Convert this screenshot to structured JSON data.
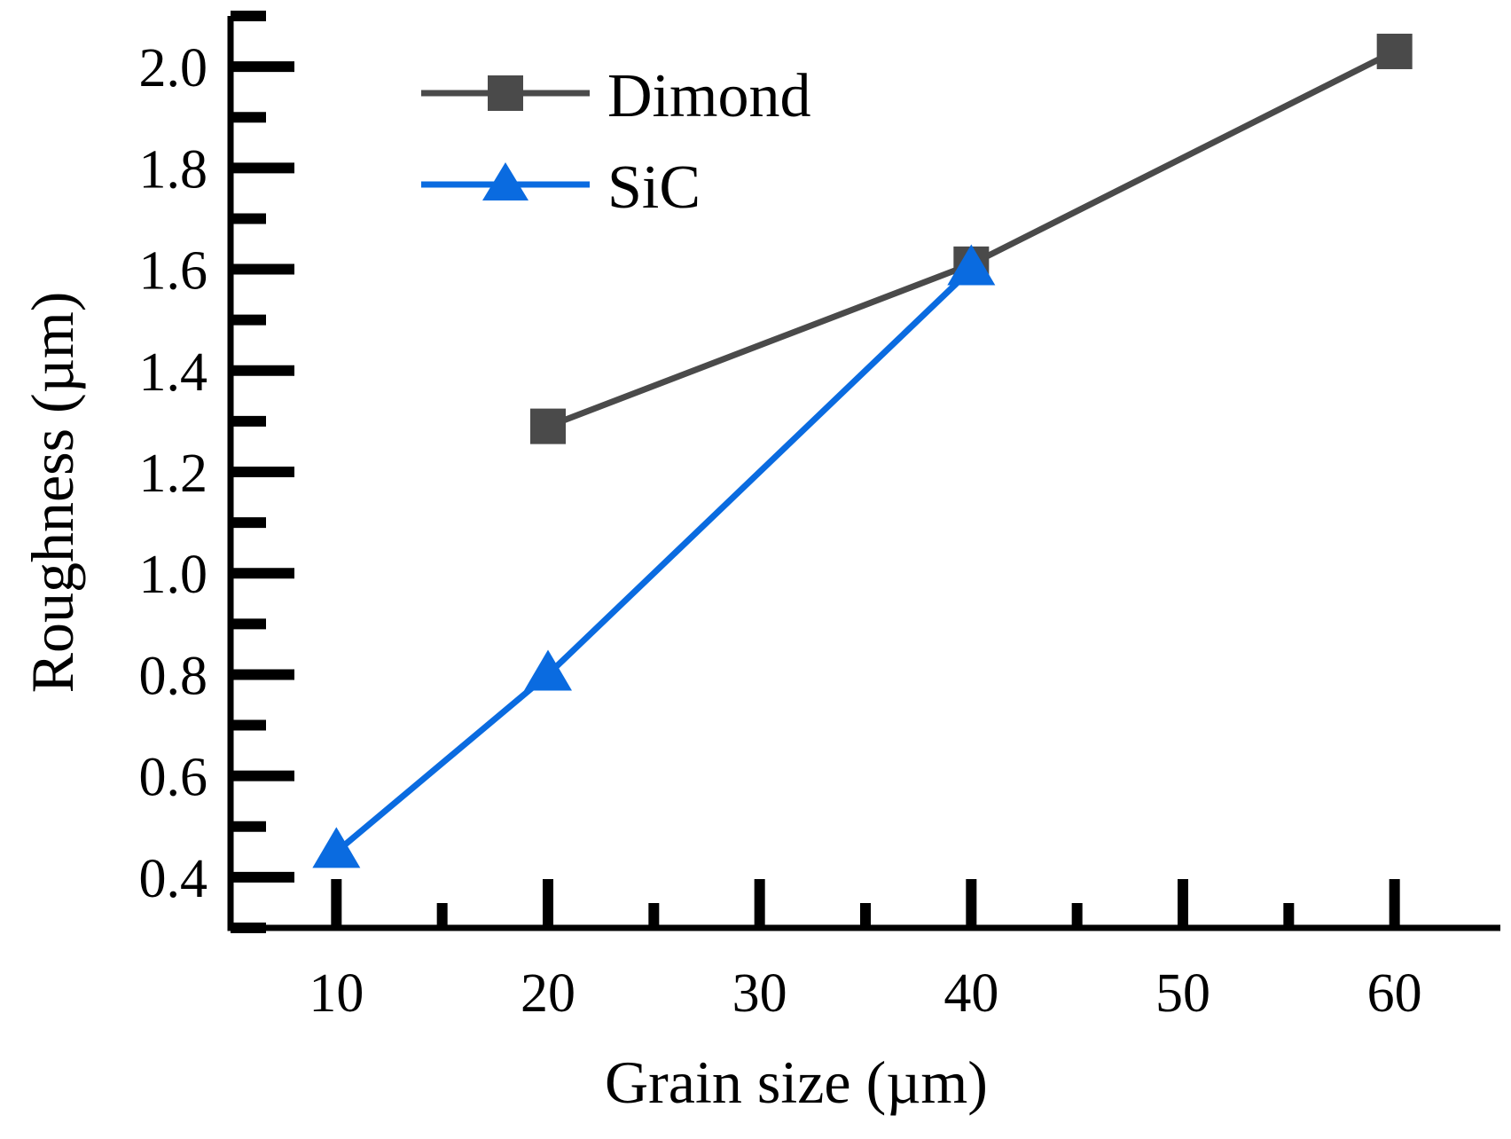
{
  "chart_data": {
    "type": "line",
    "title": "",
    "xlabel": "Grain size (µm)",
    "ylabel": "Roughness (µm)",
    "xlim": [
      5,
      65
    ],
    "ylim": [
      0.3,
      2.1
    ],
    "xticks": [
      10,
      20,
      30,
      40,
      50,
      60
    ],
    "xtick_labels": [
      "10",
      "20",
      "30",
      "40",
      "50",
      "60"
    ],
    "yticks": [
      0.4,
      0.6,
      0.8,
      1.0,
      1.2,
      1.4,
      1.6,
      1.8,
      2.0
    ],
    "ytick_labels": [
      "0.4",
      "0.6",
      "0.8",
      "1.0",
      "1.2",
      "1.4",
      "1.6",
      "1.8",
      "2.0"
    ],
    "grid": false,
    "legend_position": "top-left",
    "series": [
      {
        "name": "Dimond",
        "marker": "square",
        "color": "#4a4a4a",
        "x": [
          20,
          40,
          60
        ],
        "y": [
          1.29,
          1.61,
          2.03
        ]
      },
      {
        "name": "SiC",
        "marker": "triangle",
        "color": "#0a6be0",
        "x": [
          10,
          20,
          40
        ],
        "y": [
          0.45,
          0.8,
          1.6
        ]
      }
    ]
  }
}
